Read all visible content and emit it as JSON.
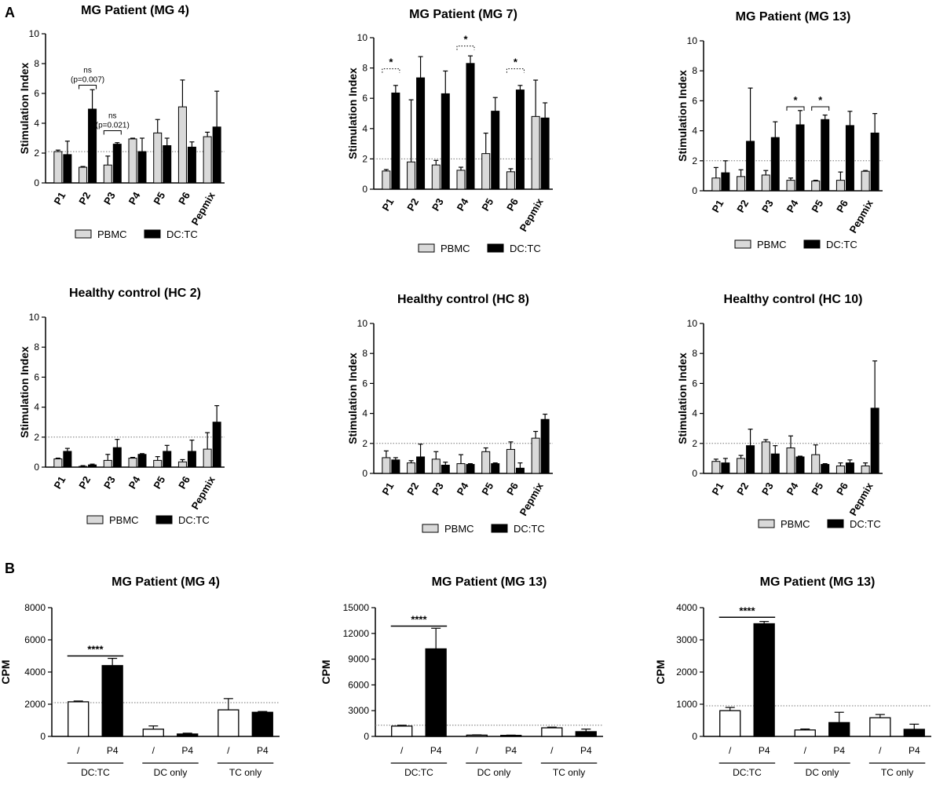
{
  "panel_labels": {
    "a": "A",
    "b": "B"
  },
  "legend_labels": {
    "pbmc": "PBMC",
    "dctc": "DC:TC"
  },
  "colors": {
    "pbmc": "#d9d9d9",
    "dctc": "#000000",
    "cpm_ctrl": "#ffffff",
    "threshold": "#777777"
  },
  "chart_data": [
    {
      "type": "bar",
      "title": "MG Patient (MG 4)",
      "ylabel": "Stimulation Index",
      "ylim": [
        0,
        10
      ],
      "yticks": [
        0,
        2,
        4,
        6,
        8,
        10
      ],
      "categories": [
        "P1",
        "P2",
        "P3",
        "P4",
        "P5",
        "P6",
        "Pepmix"
      ],
      "threshold": 2.1,
      "series": [
        {
          "name": "PBMC",
          "values": [
            2.1,
            1.05,
            1.2,
            2.95,
            3.35,
            5.1,
            3.1
          ],
          "errors": [
            0.1,
            0.05,
            0.6,
            0.05,
            0.9,
            1.8,
            0.3
          ]
        },
        {
          "name": "DC:TC",
          "values": [
            1.9,
            4.95,
            2.6,
            2.1,
            2.5,
            2.4,
            3.75
          ],
          "errors": [
            0.9,
            1.3,
            0.1,
            0.9,
            0.5,
            0.35,
            2.4
          ]
        }
      ],
      "annotations": [
        {
          "from": 1,
          "to": 1,
          "y": 6.55,
          "lines": [
            "ns",
            "(p=0.007)"
          ],
          "style": "solid"
        },
        {
          "from": 2,
          "to": 2,
          "y": 3.5,
          "lines": [
            "ns",
            "(p=0.021)"
          ],
          "style": "solid"
        }
      ]
    },
    {
      "type": "bar",
      "title": "MG Patient (MG 7)",
      "ylabel": "Stimulation Index",
      "ylim": [
        0,
        10
      ],
      "yticks": [
        0,
        2,
        4,
        6,
        8,
        10
      ],
      "categories": [
        "P1",
        "P2",
        "P3",
        "P4",
        "P5",
        "P6",
        "Pepmix"
      ],
      "threshold": 2.0,
      "series": [
        {
          "name": "PBMC",
          "values": [
            1.2,
            1.8,
            1.6,
            1.25,
            2.35,
            1.15,
            4.8
          ],
          "errors": [
            0.1,
            4.1,
            0.3,
            0.2,
            1.35,
            0.2,
            2.4
          ]
        },
        {
          "name": "DC:TC",
          "values": [
            6.35,
            7.35,
            6.3,
            8.3,
            5.15,
            6.55,
            4.7
          ],
          "errors": [
            0.5,
            1.4,
            1.5,
            0.5,
            0.9,
            0.3,
            1.0
          ]
        }
      ],
      "annotations": [
        {
          "from": 0,
          "to": 0,
          "y": 7.95,
          "lines": [
            "*"
          ],
          "style": "dotted"
        },
        {
          "from": 3,
          "to": 3,
          "y": 9.45,
          "lines": [
            "*"
          ],
          "style": "dotted"
        },
        {
          "from": 5,
          "to": 5,
          "y": 7.95,
          "lines": [
            "*"
          ],
          "style": "dotted"
        }
      ]
    },
    {
      "type": "bar",
      "title": "MG Patient (MG 13)",
      "ylabel": "Stimulation Index",
      "ylim": [
        0,
        10
      ],
      "yticks": [
        0,
        2,
        4,
        6,
        8,
        10
      ],
      "categories": [
        "P1",
        "P2",
        "P3",
        "P4",
        "P5",
        "P6",
        "Pepmix"
      ],
      "threshold": 2.0,
      "series": [
        {
          "name": "PBMC",
          "values": [
            0.85,
            0.95,
            1.05,
            0.7,
            0.65,
            0.7,
            1.3
          ],
          "errors": [
            0.7,
            0.45,
            0.3,
            0.15,
            0.05,
            0.55,
            0.05
          ]
        },
        {
          "name": "DC:TC",
          "values": [
            1.2,
            3.3,
            3.55,
            4.4,
            4.75,
            4.35,
            3.85
          ],
          "errors": [
            0.8,
            3.55,
            1.05,
            0.95,
            0.3,
            0.95,
            1.3
          ]
        }
      ],
      "annotations": [
        {
          "from": 3,
          "to": 3,
          "y": 5.6,
          "lines": [
            "*"
          ],
          "style": "solid"
        },
        {
          "from": 4,
          "to": 4,
          "y": 5.6,
          "lines": [
            "*"
          ],
          "style": "solid"
        }
      ]
    },
    {
      "type": "bar",
      "title": "Healthy control (HC 2)",
      "ylabel": "Stimulation Index",
      "ylim": [
        0,
        10
      ],
      "yticks": [
        0,
        2,
        4,
        6,
        8,
        10
      ],
      "categories": [
        "P1",
        "P2",
        "P3",
        "P4",
        "P5",
        "P6",
        "Pepmix"
      ],
      "threshold": 2.0,
      "series": [
        {
          "name": "PBMC",
          "values": [
            0.55,
            0.05,
            0.45,
            0.6,
            0.45,
            0.35,
            1.2
          ],
          "errors": [
            0.05,
            0.05,
            0.4,
            0.05,
            0.25,
            0.15,
            1.1
          ]
        },
        {
          "name": "DC:TC",
          "values": [
            1.05,
            0.15,
            1.3,
            0.85,
            1.05,
            1.05,
            3.0
          ],
          "errors": [
            0.2,
            0.05,
            0.55,
            0.05,
            0.4,
            0.75,
            1.1
          ]
        }
      ],
      "annotations": []
    },
    {
      "type": "bar",
      "title": "Healthy control (HC 8)",
      "ylabel": "Stimulation Index",
      "ylim": [
        0,
        10
      ],
      "yticks": [
        0,
        2,
        4,
        6,
        8,
        10
      ],
      "categories": [
        "P1",
        "P2",
        "P3",
        "P4",
        "P5",
        "P6",
        "Pepmix"
      ],
      "threshold": 2.0,
      "series": [
        {
          "name": "PBMC",
          "values": [
            1.05,
            0.7,
            0.95,
            0.65,
            1.45,
            1.6,
            2.35
          ],
          "errors": [
            0.45,
            0.15,
            0.5,
            0.6,
            0.25,
            0.5,
            0.45
          ]
        },
        {
          "name": "DC:TC",
          "values": [
            0.9,
            1.1,
            0.55,
            0.6,
            0.65,
            0.35,
            3.6
          ],
          "errors": [
            0.15,
            0.85,
            0.2,
            0.05,
            0.05,
            0.35,
            0.35
          ]
        }
      ],
      "annotations": []
    },
    {
      "type": "bar",
      "title": "Healthy control (HC 10)",
      "ylabel": "Stimulation Index",
      "ylim": [
        0,
        10
      ],
      "yticks": [
        0,
        2,
        4,
        6,
        8,
        10
      ],
      "categories": [
        "P1",
        "P2",
        "P3",
        "P4",
        "P5",
        "P6",
        "Pepmix"
      ],
      "threshold": 2.0,
      "series": [
        {
          "name": "PBMC",
          "values": [
            0.8,
            1.0,
            2.1,
            1.7,
            1.25,
            0.5,
            0.5
          ],
          "errors": [
            0.15,
            0.2,
            0.15,
            0.8,
            0.65,
            0.2,
            0.2
          ]
        },
        {
          "name": "DC:TC",
          "values": [
            0.7,
            1.85,
            1.3,
            1.1,
            0.6,
            0.7,
            4.35
          ],
          "errors": [
            0.3,
            1.1,
            0.55,
            0.05,
            0.05,
            0.2,
            3.15
          ]
        }
      ],
      "annotations": []
    },
    {
      "type": "bar",
      "title": "MG Patient (MG 4)",
      "ylabel": "CPM",
      "ylim": [
        0,
        8000
      ],
      "yticks": [
        0,
        2000,
        4000,
        6000,
        8000
      ],
      "categories": [
        "/",
        "P4",
        "/",
        "P4",
        "/",
        "P4"
      ],
      "groups": [
        "DC:TC",
        "DC only",
        "TC only"
      ],
      "threshold": 2100,
      "values": [
        2150,
        4400,
        450,
        150,
        1650,
        1500
      ],
      "errors": [
        50,
        450,
        200,
        50,
        700,
        50
      ],
      "annotations": [
        {
          "text": "****",
          "y": 5000
        }
      ]
    },
    {
      "type": "bar",
      "title": "MG Patient (MG 13)",
      "ylabel": "CPM",
      "ylim": [
        0,
        15000
      ],
      "yticks": [
        0,
        3000,
        6000,
        9000,
        12000,
        15000
      ],
      "categories": [
        "/",
        "P4",
        "/",
        "P4",
        "/",
        "P4"
      ],
      "groups": [
        "DC:TC",
        "DC only",
        "TC only"
      ],
      "threshold": 1300,
      "values": [
        1200,
        10200,
        150,
        120,
        1000,
        550
      ],
      "errors": [
        100,
        2400,
        30,
        30,
        80,
        300
      ],
      "annotations": [
        {
          "text": "****",
          "y": 12850
        }
      ]
    },
    {
      "type": "bar",
      "title": "MG Patient (MG 13)",
      "ylabel": "CPM",
      "ylim": [
        0,
        4000
      ],
      "yticks": [
        0,
        1000,
        2000,
        3000,
        4000
      ],
      "categories": [
        "/",
        "P4",
        "/",
        "P4",
        "/",
        "P4"
      ],
      "groups": [
        "DC:TC",
        "DC only",
        "TC only"
      ],
      "threshold": 950,
      "values": [
        800,
        3500,
        200,
        430,
        580,
        220
      ],
      "errors": [
        100,
        70,
        30,
        320,
        100,
        160
      ],
      "annotations": [
        {
          "text": "****",
          "y": 3700
        }
      ]
    }
  ]
}
